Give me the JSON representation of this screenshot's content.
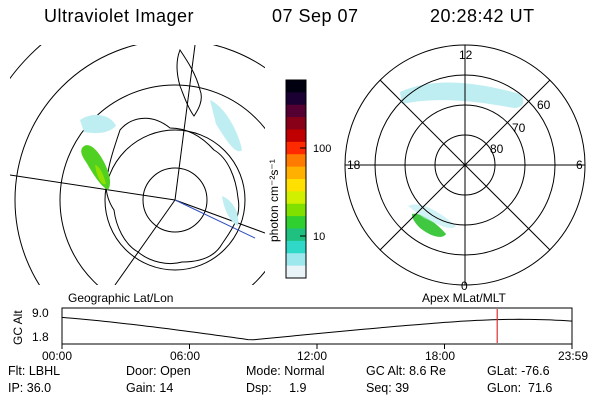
{
  "header": {
    "title": "Ultraviolet Imager",
    "date": "07 Sep 07",
    "time": "20:28:42 UT"
  },
  "colorbar": {
    "unit_label": "photon cm⁻²s⁻¹",
    "ticks": [
      "100",
      "10"
    ],
    "colors": [
      "#000010",
      "#1a0033",
      "#550033",
      "#880018",
      "#c00000",
      "#ff2a00",
      "#ff7a00",
      "#ffb000",
      "#ffe000",
      "#d0f000",
      "#80e000",
      "#30d030",
      "#20c080",
      "#30d8c8",
      "#9ce8ec",
      "#e8f4f8"
    ]
  },
  "polar_plot": {
    "mlt_labels": [
      "12",
      "18",
      "6",
      "0"
    ],
    "mlat_labels": [
      "60",
      "70",
      "80"
    ]
  },
  "map_label": "Geographic Lat/Lon",
  "polar_label": "Apex MLat/MLT",
  "altitude": {
    "axis_title": "GC Alt",
    "yticks": [
      "9.0",
      "1.8"
    ],
    "xticks": [
      "00:00",
      "06:00",
      "12:00",
      "18:00",
      "23:59"
    ],
    "current_marker_hour": 20.48,
    "min_hour": 8.9
  },
  "footer": {
    "row1": [
      {
        "label": "Flt:",
        "value": "LBHL"
      },
      {
        "label": "Door:",
        "value": "Open"
      },
      {
        "label": "Mode:",
        "value": "Normal"
      },
      {
        "label": "GC Alt:",
        "value": "8.6 Re"
      },
      {
        "label": "GLat:",
        "value": "-76.6"
      }
    ],
    "row2": [
      {
        "label": "IP:",
        "value": "36.0"
      },
      {
        "label": "Gain:",
        "value": "14"
      },
      {
        "label": "Dsp:",
        "value": "1.9"
      },
      {
        "label": "Seq:",
        "value": "39"
      },
      {
        "label": "GLon:",
        "value": "71.6"
      }
    ]
  }
}
